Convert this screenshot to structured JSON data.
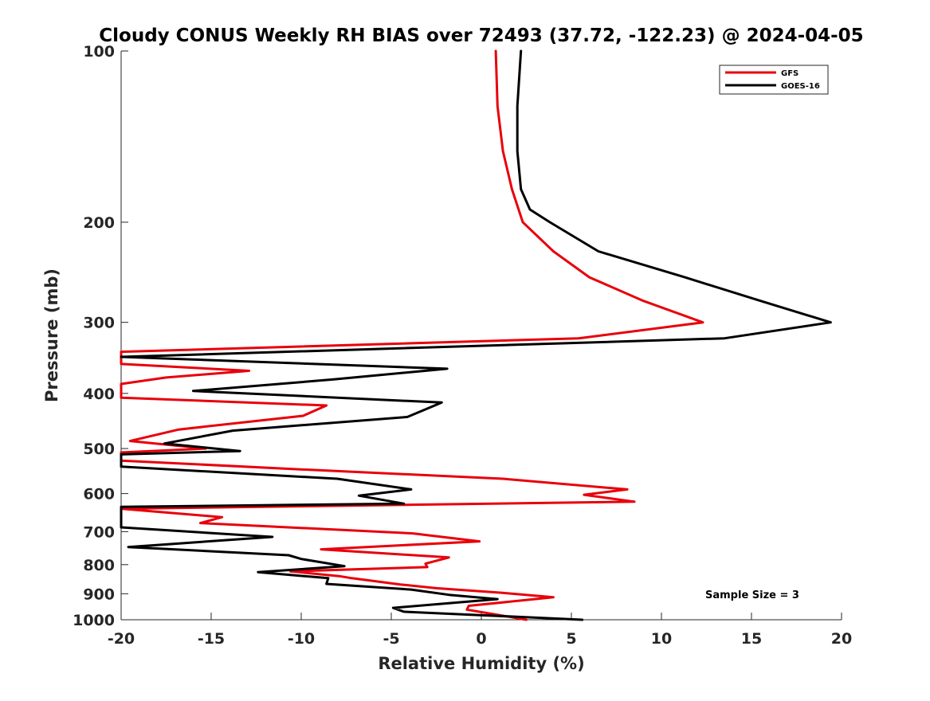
{
  "chart_data": {
    "type": "line",
    "title": "Cloudy CONUS Weekly RH BIAS over 72493 (37.72, -122.23) @ 2024-04-05",
    "xlabel": "Relative Humidity (%)",
    "ylabel": "Pressure (mb)",
    "xlim": [
      -20,
      20
    ],
    "ylim": [
      100,
      1000
    ],
    "y_scale": "log",
    "y_reversed": true,
    "x_ticks": [
      -20,
      -15,
      -10,
      -5,
      0,
      5,
      10,
      15,
      20
    ],
    "y_ticks": [
      100,
      200,
      300,
      400,
      500,
      600,
      700,
      800,
      900,
      1000
    ],
    "grid": false,
    "legend_position": "top-right",
    "annotation": "Sample Size = 3",
    "series": [
      {
        "name": "GFS",
        "color": "#e8000b",
        "points": [
          [
            0.8,
            100
          ],
          [
            0.9,
            125
          ],
          [
            1.2,
            150
          ],
          [
            1.7,
            175
          ],
          [
            2.3,
            200
          ],
          [
            4.0,
            225
          ],
          [
            6.0,
            250
          ],
          [
            9.0,
            275
          ],
          [
            12.3,
            300
          ],
          [
            5.4,
            320
          ],
          [
            -20.0,
            338
          ],
          [
            -20.0,
            355
          ],
          [
            -12.9,
            365
          ],
          [
            -17.5,
            375
          ],
          [
            -20.0,
            385
          ],
          [
            -20.0,
            407
          ],
          [
            -8.6,
            420
          ],
          [
            -9.9,
            438
          ],
          [
            -16.8,
            463
          ],
          [
            -19.5,
            485
          ],
          [
            -15.3,
            500
          ],
          [
            -20.0,
            508
          ],
          [
            -20.0,
            525
          ],
          [
            -9.5,
            545
          ],
          [
            1.2,
            565
          ],
          [
            8.1,
            590
          ],
          [
            5.7,
            603
          ],
          [
            8.5,
            620
          ],
          [
            -20.0,
            638
          ],
          [
            -14.4,
            660
          ],
          [
            -15.6,
            676
          ],
          [
            -3.8,
            705
          ],
          [
            -0.1,
            728
          ],
          [
            -8.9,
            752
          ],
          [
            -1.8,
            777
          ],
          [
            -3.1,
            797
          ],
          [
            -3.0,
            808
          ],
          [
            -10.6,
            822
          ],
          [
            -7.9,
            838
          ],
          [
            -7.2,
            845
          ],
          [
            -4.5,
            867
          ],
          [
            -2.5,
            880
          ],
          [
            1.2,
            897
          ],
          [
            4.0,
            913
          ],
          [
            -0.7,
            945
          ],
          [
            -0.8,
            960
          ],
          [
            2.5,
            1000
          ]
        ]
      },
      {
        "name": "GOES-16",
        "color": "#000000",
        "points": [
          [
            2.2,
            100
          ],
          [
            2.0,
            125
          ],
          [
            2.0,
            150
          ],
          [
            2.2,
            175
          ],
          [
            2.7,
            190
          ],
          [
            3.8,
            200
          ],
          [
            6.5,
            225
          ],
          [
            11.3,
            250
          ],
          [
            15.5,
            275
          ],
          [
            19.4,
            300
          ],
          [
            13.5,
            320
          ],
          [
            -20.0,
            345
          ],
          [
            -1.9,
            362
          ],
          [
            -8.2,
            378
          ],
          [
            -16.0,
            396
          ],
          [
            -2.2,
            415
          ],
          [
            -4.1,
            440
          ],
          [
            -13.8,
            465
          ],
          [
            -17.6,
            490
          ],
          [
            -13.4,
            505
          ],
          [
            -20.0,
            512
          ],
          [
            -20.0,
            538
          ],
          [
            -8.0,
            565
          ],
          [
            -3.9,
            590
          ],
          [
            -6.8,
            605
          ],
          [
            -4.3,
            625
          ],
          [
            -20.0,
            633
          ],
          [
            -20.0,
            688
          ],
          [
            -11.6,
            715
          ],
          [
            -19.6,
            745
          ],
          [
            -10.7,
            770
          ],
          [
            -10.0,
            782
          ],
          [
            -7.6,
            805
          ],
          [
            -12.4,
            825
          ],
          [
            -8.5,
            845
          ],
          [
            -8.6,
            865
          ],
          [
            -3.9,
            885
          ],
          [
            -1.8,
            904
          ],
          [
            0.9,
            920
          ],
          [
            -4.9,
            953
          ],
          [
            -4.3,
            968
          ],
          [
            5.6,
            1000
          ]
        ]
      }
    ]
  }
}
